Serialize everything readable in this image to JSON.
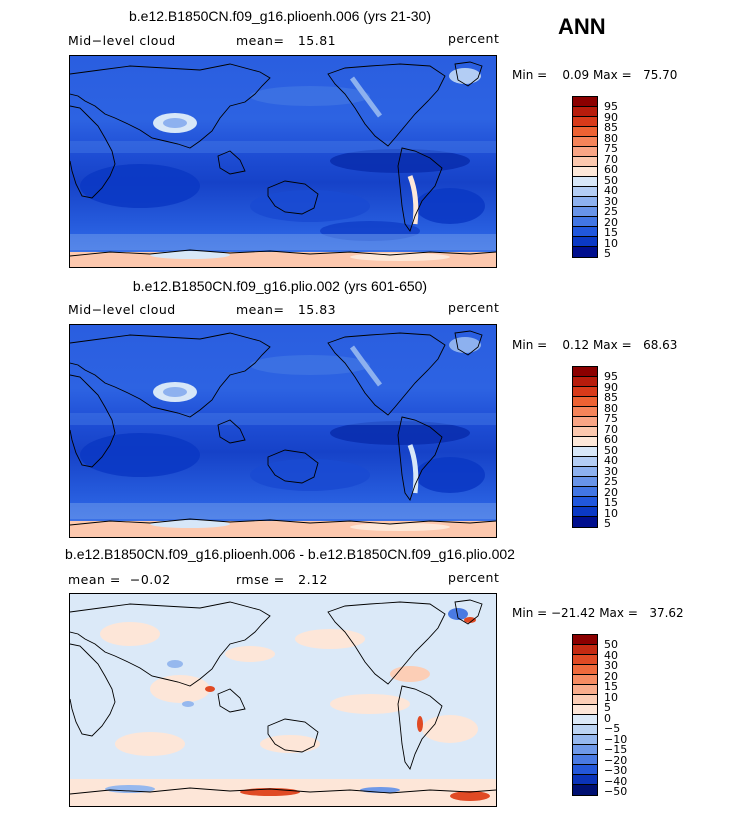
{
  "season": "ANN",
  "panels": [
    {
      "title": "b.e12.B1850CN.f09_g16.plioenh.006 (yrs 21-30)",
      "left_label": "Mid−level cloud",
      "center_label": "mean=   15.81",
      "right_label": "percent",
      "minmax": "Min =    0.09 Max =   75.70",
      "colorbar": {
        "colors": [
          "#8b0000",
          "#b71c0c",
          "#d83a1a",
          "#ed6233",
          "#f5845a",
          "#f9a585",
          "#fcc8ae",
          "#fde8d9",
          "#d7e7f8",
          "#b3cdf4",
          "#8db1ef",
          "#6894e9",
          "#4276e4",
          "#2157dc",
          "#0b39c4",
          "#000f8e"
        ],
        "labels": [
          "95",
          "90",
          "85",
          "80",
          "75",
          "70",
          "60",
          "50",
          "40",
          "30",
          "25",
          "20",
          "15",
          "10",
          "5"
        ]
      }
    },
    {
      "title": "b.e12.B1850CN.f09_g16.plio.002 (yrs 601-650)",
      "left_label": "Mid−level cloud",
      "center_label": "mean=   15.83",
      "right_label": "percent",
      "minmax": "Min =    0.12 Max =   68.63",
      "colorbar": {
        "colors": [
          "#8b0000",
          "#b71c0c",
          "#d83a1a",
          "#ed6233",
          "#f5845a",
          "#f9a585",
          "#fcc8ae",
          "#fde8d9",
          "#d7e7f8",
          "#b3cdf4",
          "#8db1ef",
          "#6894e9",
          "#4276e4",
          "#2157dc",
          "#0b39c4",
          "#000f8e"
        ],
        "labels": [
          "95",
          "90",
          "85",
          "80",
          "75",
          "70",
          "60",
          "50",
          "40",
          "30",
          "25",
          "20",
          "15",
          "10",
          "5"
        ]
      }
    },
    {
      "title": "b.e12.B1850CN.f09_g16.plioenh.006 - b.e12.B1850CN.f09_g16.plio.002",
      "left_label": "mean =  −0.02",
      "center_label": "rmse =   2.12",
      "right_label": "percent",
      "minmax": "Min = −21.42 Max =   37.62",
      "colorbar": {
        "colors": [
          "#8b0000",
          "#c42a12",
          "#e04a24",
          "#ef6a3c",
          "#f68c62",
          "#f9ad8c",
          "#fcceb6",
          "#fde6d8",
          "#dbe9f8",
          "#bcd4f3",
          "#96b8ee",
          "#6f99e8",
          "#4a7ae2",
          "#2457d8",
          "#0b33b8",
          "#001072"
        ],
        "labels": [
          "50",
          "40",
          "30",
          "20",
          "15",
          "10",
          "5",
          "0",
          "−5",
          "−10",
          "−15",
          "−20",
          "−30",
          "−40",
          "−50"
        ]
      }
    }
  ],
  "chart_data": [
    {
      "type": "heatmap",
      "title": "b.e12.B1850CN.f09_g16.plioenh.006 (yrs 21-30)",
      "variable": "Mid−level cloud",
      "units": "percent",
      "mean": 15.81,
      "min": 0.09,
      "max": 75.7,
      "levels": [
        5,
        10,
        15,
        20,
        25,
        30,
        40,
        50,
        60,
        70,
        75,
        80,
        85,
        90,
        95
      ]
    },
    {
      "type": "heatmap",
      "title": "b.e12.B1850CN.f09_g16.plio.002 (yrs 601-650)",
      "variable": "Mid−level cloud",
      "units": "percent",
      "mean": 15.83,
      "min": 0.12,
      "max": 68.63,
      "levels": [
        5,
        10,
        15,
        20,
        25,
        30,
        40,
        50,
        60,
        70,
        75,
        80,
        85,
        90,
        95
      ]
    },
    {
      "type": "heatmap",
      "title": "b.e12.B1850CN.f09_g16.plioenh.006 - b.e12.B1850CN.f09_g16.plio.002",
      "units": "percent",
      "mean": -0.02,
      "rmse": 2.12,
      "min": -21.42,
      "max": 37.62,
      "levels": [
        -50,
        -40,
        -30,
        -20,
        -15,
        -10,
        -5,
        0,
        5,
        10,
        15,
        20,
        30,
        40,
        50
      ]
    }
  ]
}
